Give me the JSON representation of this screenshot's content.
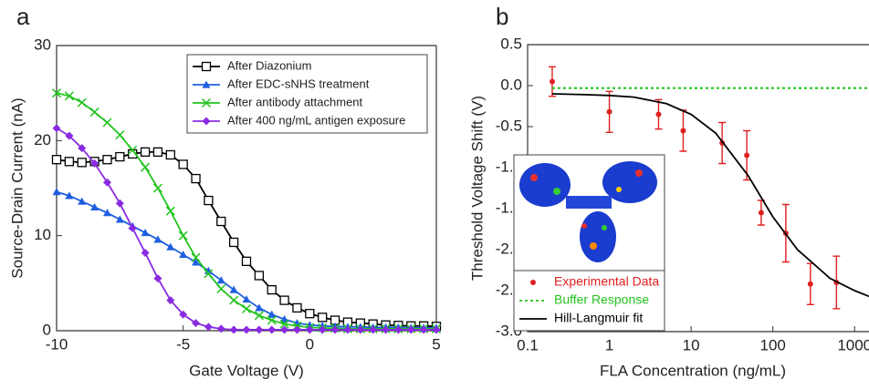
{
  "chart_data": [
    {
      "type": "line",
      "panel_label": "a",
      "x_label": "Gate Voltage (V)",
      "y_label": "Source-Drain Current (nA)",
      "x": [
        -10,
        -9.5,
        -9,
        -8.5,
        -8,
        -7.5,
        -7,
        -6.5,
        -6,
        -5.5,
        -5,
        -4.5,
        -4,
        -3.5,
        -3,
        -2.5,
        -2,
        -1.5,
        -1,
        -0.5,
        0,
        0.5,
        1,
        1.5,
        2,
        2.5,
        3,
        3.5,
        4,
        4.5,
        5
      ],
      "xlim": [
        -10,
        5
      ],
      "ylim": [
        0,
        30
      ],
      "xticks": [
        -10,
        -5,
        0,
        5
      ],
      "yticks": [
        0,
        10,
        20,
        30
      ],
      "legend_position": "upper right",
      "legend_text_colored": false,
      "series": [
        {
          "name": "After Diazonium",
          "color": "#000000",
          "marker": "square",
          "values": [
            18,
            17.8,
            17.7,
            17.8,
            18,
            18.3,
            18.6,
            18.8,
            18.8,
            18.5,
            17.5,
            16,
            13.7,
            11.5,
            9.3,
            7.3,
            5.8,
            4.3,
            3.2,
            2.4,
            1.8,
            1.4,
            1.1,
            0.9,
            0.8,
            0.7,
            0.6,
            0.55,
            0.5,
            0.5,
            0.45
          ]
        },
        {
          "name": "After EDC-sNHS treatment",
          "color": "#1f5fe0",
          "marker": "triangle",
          "values": [
            14.6,
            14.2,
            13.6,
            13,
            12.4,
            11.7,
            11,
            10.3,
            9.6,
            8.8,
            8,
            7.2,
            6.3,
            5.3,
            4.3,
            3.3,
            2.4,
            1.7,
            1.2,
            0.8,
            0.6,
            0.5,
            0.45,
            0.4,
            0.4,
            0.35,
            0.35,
            0.35,
            0.3,
            0.3,
            0.3
          ]
        },
        {
          "name": "After antibody attachment",
          "color": "#22c41e",
          "marker": "x",
          "values": [
            25,
            24.7,
            24,
            23,
            21.9,
            20.6,
            19,
            17.2,
            15,
            12.6,
            10,
            7.7,
            6,
            4.4,
            3.2,
            2.3,
            1.6,
            1.1,
            0.7,
            0.5,
            0.35,
            0.3,
            0.25,
            0.2,
            0.2,
            0.2,
            0.2,
            0.2,
            0.2,
            0.2,
            0.2
          ]
        },
        {
          "name": "After 400 ng/mL antigen exposure",
          "color": "#8a2be2",
          "marker": "diamond",
          "values": [
            21.3,
            20.5,
            19.2,
            17.6,
            15.6,
            13.4,
            10.8,
            8.2,
            5.5,
            3.2,
            1.7,
            0.8,
            0.4,
            0.2,
            0.1,
            0.1,
            0.1,
            0.1,
            0.1,
            0.1,
            0.1,
            0.1,
            0.1,
            0.1,
            0.1,
            0.1,
            0.1,
            0.1,
            0.1,
            0.1,
            0.1
          ]
        }
      ]
    },
    {
      "type": "scatter",
      "panel_label": "b",
      "x_label": "FLA Concentration (ng/mL)",
      "y_label": "Threshold Voltage Shift (V)",
      "xscale": "log",
      "xlim": [
        0.1,
        1500
      ],
      "ylim": [
        -3,
        0.5
      ],
      "xticks": [
        0.1,
        1,
        10,
        100,
        1000
      ],
      "yticks": [
        0.5,
        {
          "value": 0,
          "label": "0.0"
        },
        -0.5,
        {
          "value": -1,
          "label": "-1.0"
        },
        -1.5,
        {
          "value": -2,
          "label": "-2.0"
        },
        -2.5,
        {
          "value": -3,
          "label": "-3.0"
        }
      ],
      "legend_position": "lower left",
      "legend_text_colored": true,
      "series": [
        {
          "name": "Experimental Data",
          "color": "#e02020",
          "marker": "dot",
          "x": [
            0.2,
            1,
            4,
            8,
            24,
            48,
            72,
            144,
            288,
            600
          ],
          "values": [
            0.05,
            -0.32,
            -0.35,
            -0.55,
            -0.7,
            -0.85,
            -1.55,
            -1.8,
            -2.42,
            -2.4
          ],
          "errors": [
            0.18,
            0.25,
            0.18,
            0.25,
            0.25,
            0.3,
            0.15,
            0.35,
            0.25,
            0.32
          ]
        },
        {
          "name": "Buffer Response",
          "color": "#22c41e",
          "line_style": "dotted",
          "x": [
            0.2,
            1500
          ],
          "values": [
            -0.03,
            -0.03
          ]
        },
        {
          "name": "Hill-Langmuir fit",
          "color": "#000000",
          "line_style": "solid",
          "x": [
            0.2,
            0.5,
            1,
            2,
            5,
            10,
            20,
            50,
            100,
            200,
            500,
            1000,
            1500
          ],
          "values": [
            -0.1,
            -0.11,
            -0.12,
            -0.14,
            -0.22,
            -0.35,
            -0.58,
            -1.1,
            -1.6,
            -2,
            -2.35,
            -2.5,
            -2.57
          ]
        }
      ]
    }
  ]
}
